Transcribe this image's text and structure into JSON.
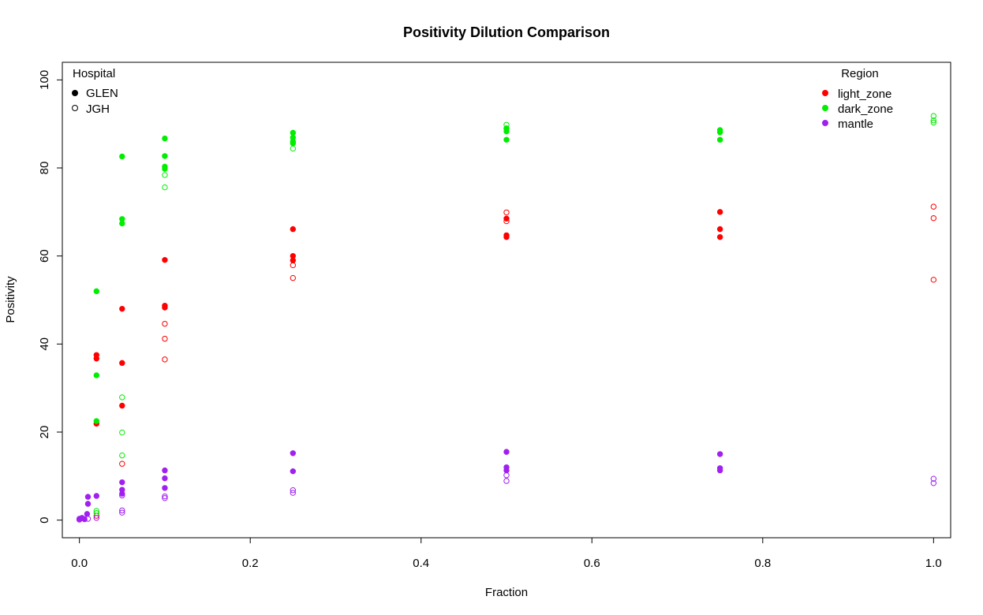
{
  "chart_data": {
    "type": "scatter",
    "title": "Positivity Dilution Comparison",
    "xlabel": "Fraction",
    "ylabel": "Positivity",
    "xlim": [
      -0.02,
      1.02
    ],
    "ylim": [
      -4,
      104
    ],
    "x_ticks": [
      "0.0",
      "0.2",
      "0.4",
      "0.6",
      "0.8",
      "1.0"
    ],
    "x_tick_values": [
      0,
      0.2,
      0.4,
      0.6,
      0.8,
      1.0
    ],
    "y_ticks": [
      "0",
      "20",
      "40",
      "60",
      "80",
      "100"
    ],
    "y_tick_values": [
      0,
      20,
      40,
      60,
      80,
      100
    ],
    "grid": false,
    "legend_hospital": {
      "title": "Hospital",
      "placement": "top-left",
      "entries": [
        {
          "label": "GLEN",
          "marker": "filled"
        },
        {
          "label": "JGH",
          "marker": "open"
        }
      ]
    },
    "legend_region": {
      "title": "Region",
      "placement": "top-right",
      "entries": [
        {
          "label": "light_zone",
          "color": "#ff0000"
        },
        {
          "label": "dark_zone",
          "color": "#00ee00"
        },
        {
          "label": "mantle",
          "color": "#a020f0"
        }
      ]
    },
    "series": [
      {
        "region": "light_zone",
        "hospital": "GLEN",
        "color": "#ff0000",
        "marker": "filled",
        "points": [
          [
            0.02,
            37.5
          ],
          [
            0.02,
            36.7
          ],
          [
            0.02,
            21.9
          ],
          [
            0.05,
            48.0
          ],
          [
            0.05,
            35.7
          ],
          [
            0.05,
            26.0
          ],
          [
            0.1,
            59.1
          ],
          [
            0.1,
            48.7
          ],
          [
            0.1,
            48.3
          ],
          [
            0.25,
            66.1
          ],
          [
            0.25,
            60.0
          ],
          [
            0.25,
            59.0
          ],
          [
            0.5,
            68.5
          ],
          [
            0.5,
            64.7
          ],
          [
            0.5,
            64.3
          ],
          [
            0.75,
            70.0
          ],
          [
            0.75,
            66.1
          ],
          [
            0.75,
            64.3
          ]
        ]
      },
      {
        "region": "light_zone",
        "hospital": "JGH",
        "color": "#ff0000",
        "marker": "open",
        "points": [
          [
            0.02,
            1.0
          ],
          [
            0.05,
            12.8
          ],
          [
            0.1,
            44.6
          ],
          [
            0.1,
            41.2
          ],
          [
            0.1,
            36.5
          ],
          [
            0.25,
            57.9
          ],
          [
            0.25,
            55.0
          ],
          [
            0.5,
            69.9
          ],
          [
            0.5,
            67.9
          ],
          [
            1.0,
            71.2
          ],
          [
            1.0,
            68.6
          ],
          [
            1.0,
            54.6
          ]
        ]
      },
      {
        "region": "dark_zone",
        "hospital": "GLEN",
        "color": "#00ee00",
        "marker": "filled",
        "points": [
          [
            0.02,
            52.0
          ],
          [
            0.02,
            32.9
          ],
          [
            0.02,
            22.5
          ],
          [
            0.05,
            82.6
          ],
          [
            0.05,
            68.4
          ],
          [
            0.05,
            67.4
          ],
          [
            0.1,
            86.7
          ],
          [
            0.1,
            82.7
          ],
          [
            0.1,
            80.3
          ],
          [
            0.1,
            79.8
          ],
          [
            0.25,
            88.0
          ],
          [
            0.25,
            86.9
          ],
          [
            0.25,
            86.0
          ],
          [
            0.25,
            85.6
          ],
          [
            0.5,
            88.9
          ],
          [
            0.5,
            88.3
          ],
          [
            0.5,
            86.4
          ],
          [
            0.75,
            88.6
          ],
          [
            0.75,
            88.1
          ],
          [
            0.75,
            86.4
          ]
        ]
      },
      {
        "region": "dark_zone",
        "hospital": "JGH",
        "color": "#00ee00",
        "marker": "open",
        "points": [
          [
            0.02,
            2.1
          ],
          [
            0.02,
            1.6
          ],
          [
            0.05,
            27.9
          ],
          [
            0.05,
            19.9
          ],
          [
            0.05,
            14.7
          ],
          [
            0.1,
            78.4
          ],
          [
            0.1,
            75.6
          ],
          [
            0.25,
            84.4
          ],
          [
            0.5,
            89.8
          ],
          [
            0.5,
            89.0
          ],
          [
            1.0,
            91.8
          ],
          [
            1.0,
            90.8
          ],
          [
            1.0,
            90.3
          ]
        ]
      },
      {
        "region": "mantle",
        "hospital": "GLEN",
        "color": "#a020f0",
        "marker": "filled",
        "points": [
          [
            0.0,
            0.3
          ],
          [
            0.003,
            0.5
          ],
          [
            0.006,
            0.2
          ],
          [
            0.009,
            1.4
          ],
          [
            0.01,
            5.3
          ],
          [
            0.01,
            3.7
          ],
          [
            0.02,
            5.5
          ],
          [
            0.05,
            8.6
          ],
          [
            0.05,
            6.9
          ],
          [
            0.05,
            6.0
          ],
          [
            0.1,
            11.3
          ],
          [
            0.1,
            9.5
          ],
          [
            0.1,
            7.3
          ],
          [
            0.25,
            15.2
          ],
          [
            0.25,
            11.1
          ],
          [
            0.5,
            15.5
          ],
          [
            0.5,
            12.0
          ],
          [
            0.5,
            11.3
          ],
          [
            0.75,
            15.0
          ],
          [
            0.75,
            11.8
          ],
          [
            0.75,
            11.3
          ]
        ]
      },
      {
        "region": "mantle",
        "hospital": "JGH",
        "color": "#a020f0",
        "marker": "open",
        "points": [
          [
            0.0,
            0.1
          ],
          [
            0.01,
            0.3
          ],
          [
            0.02,
            0.5
          ],
          [
            0.05,
            2.2
          ],
          [
            0.05,
            1.7
          ],
          [
            0.05,
            5.6
          ],
          [
            0.1,
            5.4
          ],
          [
            0.1,
            5.0
          ],
          [
            0.25,
            6.8
          ],
          [
            0.25,
            6.2
          ],
          [
            0.5,
            10.2
          ],
          [
            0.5,
            8.9
          ],
          [
            1.0,
            9.4
          ],
          [
            1.0,
            8.4
          ]
        ]
      }
    ]
  }
}
